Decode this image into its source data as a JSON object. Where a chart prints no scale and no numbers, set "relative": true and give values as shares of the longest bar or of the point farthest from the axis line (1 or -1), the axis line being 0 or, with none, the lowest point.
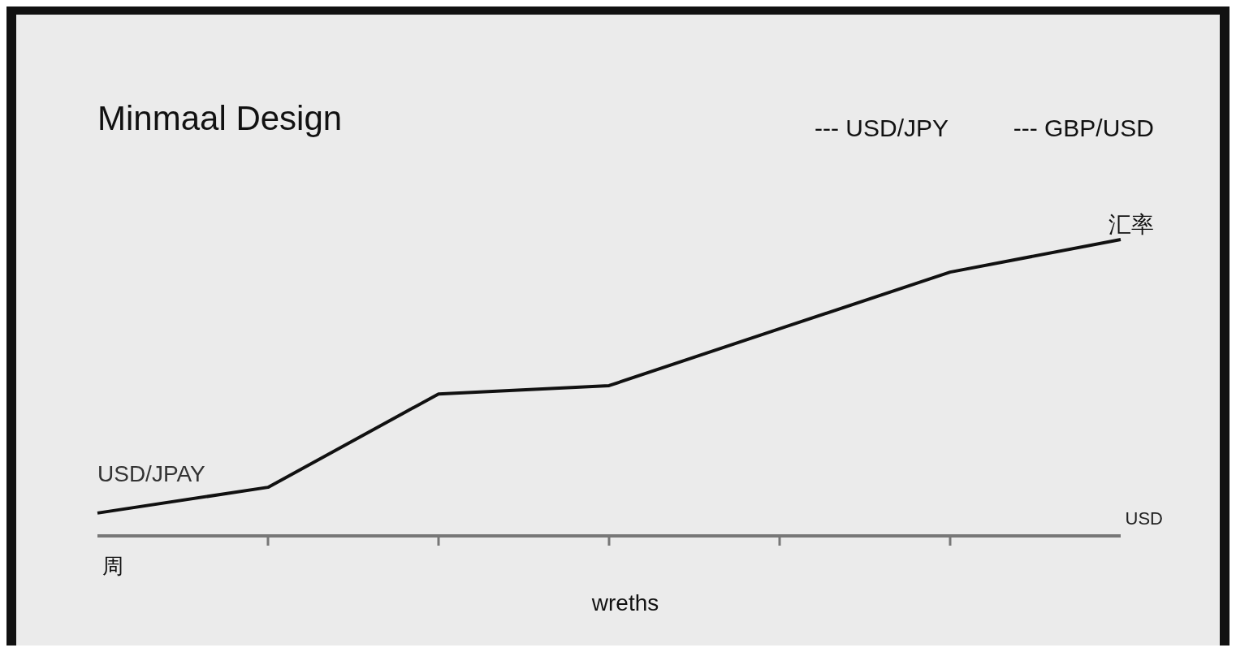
{
  "chart_data": {
    "type": "line",
    "title": "Minmaal Design",
    "xlabel": "wreths",
    "ylabel": "汇率",
    "relative": true,
    "categories": [
      null,
      null,
      null,
      null,
      null,
      null,
      null
    ],
    "series": [
      {
        "color": "#111111",
        "values": [
          0.077,
          0.164,
          0.479,
          0.507,
          0.699,
          0.89,
          1
        ]
      }
    ],
    "annotations": [
      "--- USD/JPY",
      "--- GBP/USD",
      "USD/JPAY",
      "USD",
      "周"
    ],
    "marker": "none",
    "line_style": "solid"
  }
}
